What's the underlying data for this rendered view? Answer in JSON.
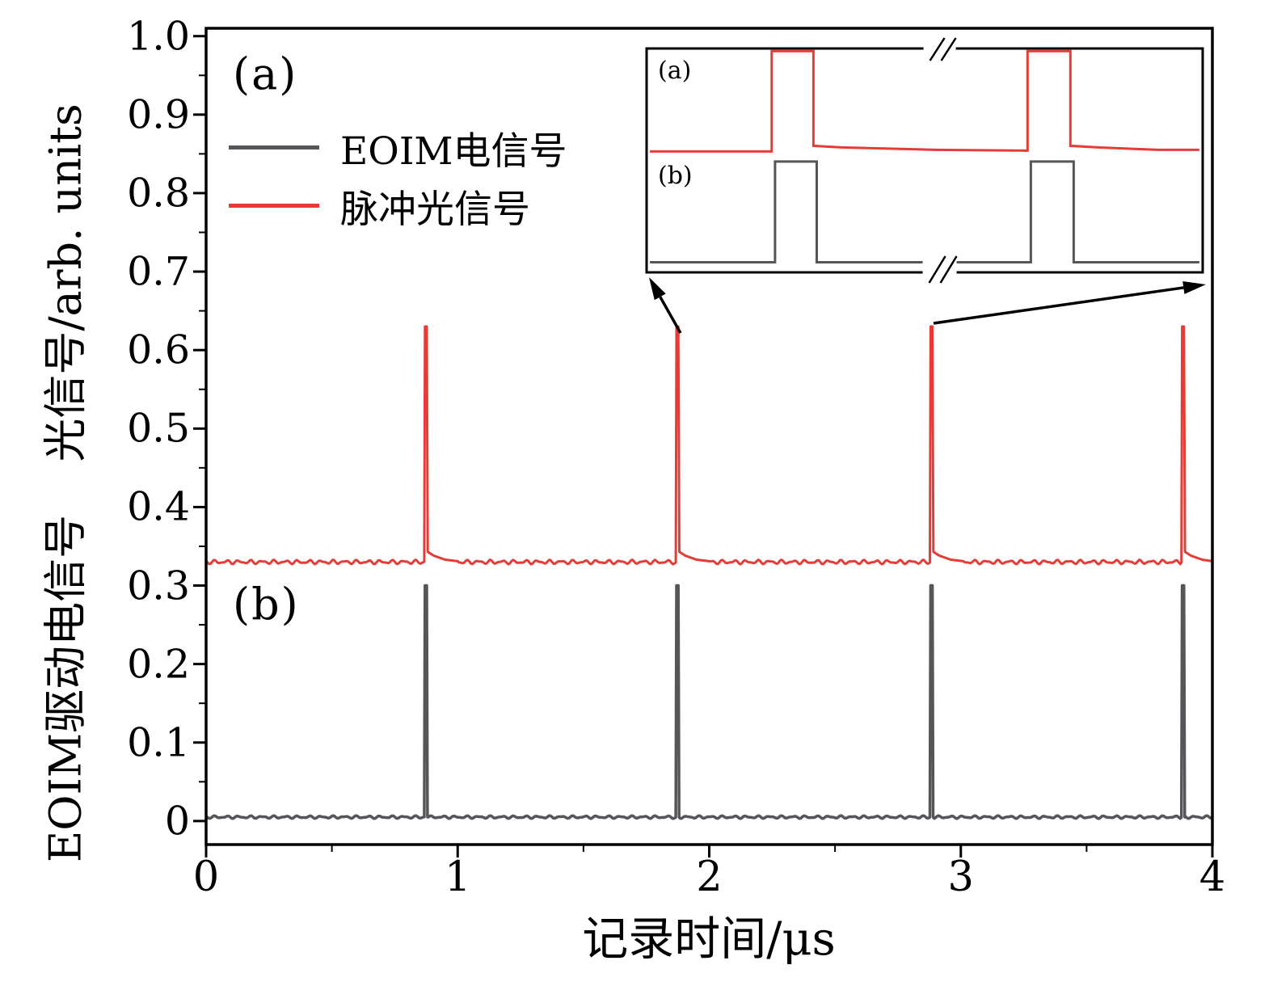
{
  "chart_data": {
    "type": "line",
    "title": "",
    "xlabel": "记录时间/μs",
    "ylabel_top": "光信号/arb. units",
    "ylabel_bottom": "EOIM驱动电信号",
    "xlim": [
      0,
      4
    ],
    "ylim": [
      0,
      1.0
    ],
    "x_ticks": [
      "0",
      "1",
      "2",
      "3",
      "4"
    ],
    "y_ticks": [
      "0",
      "0.1",
      "0.2",
      "0.3",
      "0.4",
      "0.5",
      "0.6",
      "0.7",
      "0.8",
      "0.9",
      "1.0"
    ],
    "grid": false,
    "legend_position": "upper-left",
    "panel_labels": [
      "(a)",
      "(b)"
    ],
    "legend": [
      {
        "label": "EOIM电信号",
        "color": "#54565a"
      },
      {
        "label": "脉冲光信号",
        "color": "#e63c35"
      }
    ],
    "series": [
      {
        "name": "脉冲光信号",
        "color": "#e63c35",
        "baseline": 0.33,
        "peak_value": 0.63,
        "pulse_times_us": [
          0.87,
          1.87,
          2.88,
          3.88
        ],
        "pulse_period_us": 1.0
      },
      {
        "name": "EOIM电信号",
        "color": "#54565a",
        "baseline": 0.005,
        "peak_value": 0.3,
        "pulse_times_us": [
          0.87,
          1.87,
          2.88,
          3.88
        ],
        "pulse_period_us": 1.0
      }
    ],
    "inset": {
      "label_a": "(a)",
      "label_b": "(b)",
      "description": "zoomed view of two pulses with axis break",
      "pulses_frac": [
        [
          0.225,
          0.3
        ],
        [
          0.685,
          0.762
        ]
      ],
      "break_frac": 0.527,
      "red": {
        "baseline_frac": 0.46,
        "top_frac": 0.012
      },
      "gray": {
        "baseline_frac": 0.955,
        "top_frac": 0.505
      }
    }
  }
}
